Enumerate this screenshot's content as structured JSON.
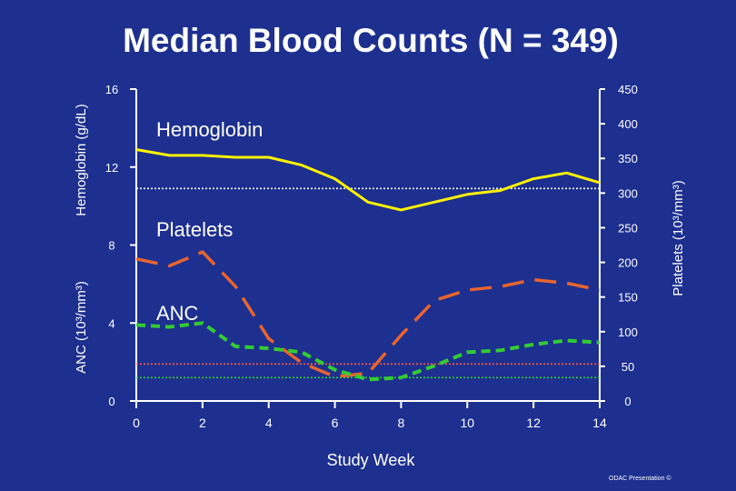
{
  "slide": {
    "title": "Median Blood Counts (N = 349)",
    "footer": "ODAC Presentation ©"
  },
  "colors": {
    "background": "#1d2f8f",
    "axis": "#ffffff",
    "hemoglobin": "#fff200",
    "platelets": "#e8642e",
    "anc": "#33cc33",
    "reference_white": "#ffffff",
    "reference_red": "#ff5a3c",
    "reference_green": "#33cc33"
  },
  "chart_data": {
    "type": "line",
    "xlabel": "Study Week",
    "x_ticks": [
      0,
      2,
      4,
      6,
      8,
      10,
      12,
      14
    ],
    "xlim": [
      0,
      14
    ],
    "left_axis": {
      "ticks": [
        0,
        4,
        8,
        12,
        16
      ],
      "ylim": [
        0,
        16
      ],
      "label_upper": "Hemoglobin (g/dL)",
      "label_lower": "ANC (10³/mm³)"
    },
    "right_axis": {
      "ticks": [
        0,
        50,
        100,
        150,
        200,
        250,
        300,
        350,
        400,
        450
      ],
      "ylim": [
        0,
        450
      ],
      "label": "Platelets (10³/mm³)"
    },
    "series": [
      {
        "name": "Hemoglobin",
        "axis": "left",
        "style": "solid",
        "x": [
          0,
          1,
          2,
          3,
          4,
          5,
          6,
          7,
          8,
          9,
          10,
          11,
          12,
          13,
          14
        ],
        "y": [
          12.9,
          12.6,
          12.6,
          12.5,
          12.5,
          12.1,
          11.4,
          10.2,
          9.8,
          10.2,
          10.6,
          10.8,
          11.4,
          11.7,
          11.2
        ]
      },
      {
        "name": "Platelets",
        "axis": "right",
        "style": "long-dash",
        "x": [
          0,
          1,
          2,
          3,
          4,
          5,
          6,
          7,
          8,
          9,
          10,
          11,
          12,
          13,
          14
        ],
        "y": [
          205,
          195,
          215,
          165,
          90,
          55,
          35,
          40,
          95,
          145,
          160,
          165,
          175,
          170,
          160
        ]
      },
      {
        "name": "ANC",
        "axis": "left",
        "style": "short-dash",
        "x": [
          0,
          1,
          2,
          3,
          4,
          5,
          6,
          7,
          8,
          9,
          10,
          11,
          12,
          13,
          14
        ],
        "y": [
          3.9,
          3.8,
          4.0,
          2.8,
          2.7,
          2.5,
          1.6,
          1.1,
          1.2,
          1.8,
          2.5,
          2.6,
          2.9,
          3.1,
          3.0
        ]
      }
    ],
    "reference_lines": [
      {
        "axis": "left",
        "y": 10.9,
        "style": "dotted",
        "color": "#ffffff"
      },
      {
        "axis": "left",
        "y": 1.9,
        "style": "dotted",
        "color": "#ff5a3c"
      },
      {
        "axis": "left",
        "y": 1.2,
        "style": "dotted",
        "color": "#33cc33"
      }
    ],
    "annotations": [
      "Hemoglobin",
      "Platelets",
      "ANC"
    ],
    "grid": false,
    "legend": "none"
  }
}
